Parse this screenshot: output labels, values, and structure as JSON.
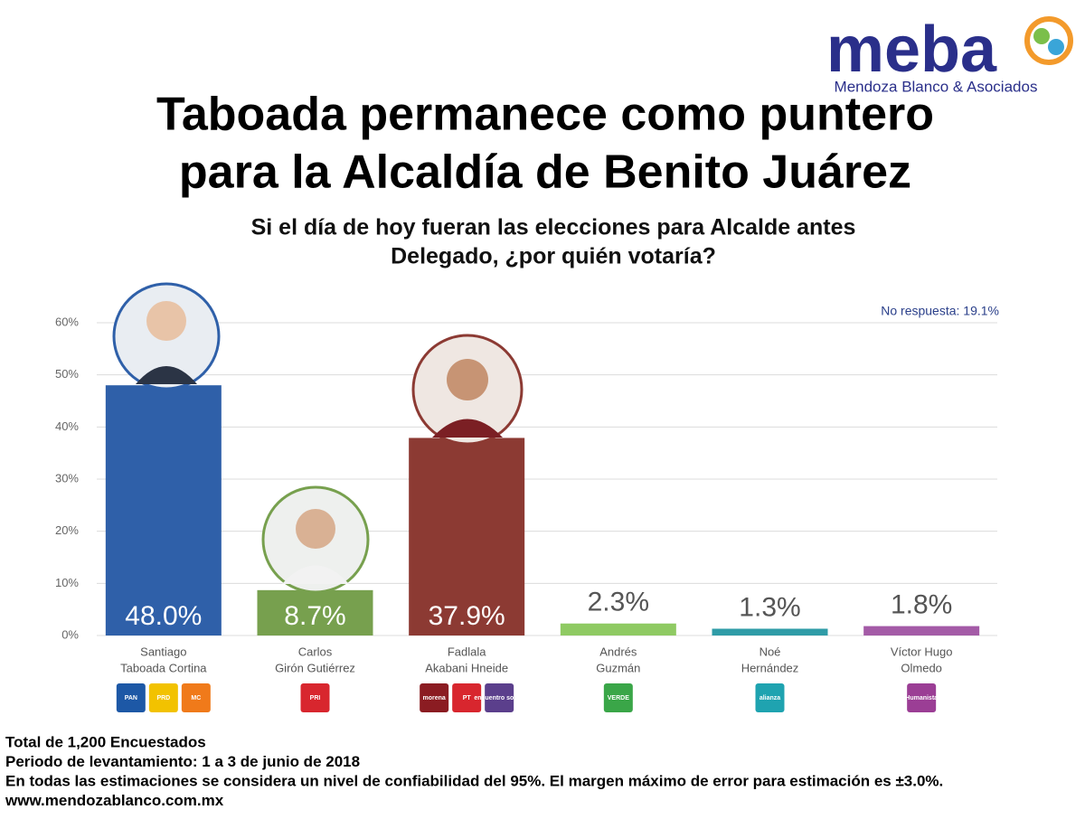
{
  "brand": {
    "name": "meba",
    "tagline": "Mendoza Blanco & Asociados"
  },
  "chart_data": {
    "type": "bar",
    "title": [
      "Taboada permanece como puntero",
      "para la Alcaldía de Benito Juárez"
    ],
    "subtitle": [
      "Si el día de hoy fueran las elecciones para Alcalde antes",
      "Delegado, ¿por quién votaría?"
    ],
    "annotation": "No respuesta: 19.1%",
    "categories": [
      [
        "Santiago",
        "Taboada Cortina"
      ],
      [
        "Carlos",
        "Girón Gutiérrez"
      ],
      [
        "Fadlala",
        "Akabani Hneide"
      ],
      [
        "Andrés",
        "Guzmán"
      ],
      [
        "Noé",
        "Hernández"
      ],
      [
        "Víctor Hugo",
        "Olmedo"
      ]
    ],
    "values": [
      48.0,
      8.7,
      37.9,
      2.3,
      1.3,
      1.8
    ],
    "value_labels": [
      "48.0%",
      "8.7%",
      "37.9%",
      "2.3%",
      "1.3%",
      "1.8%"
    ],
    "colors": [
      "#2f60a9",
      "#77a04e",
      "#8c3a33",
      "#8fca63",
      "#2f9ca7",
      "#a45ba7"
    ],
    "ylim": [
      0,
      60
    ],
    "yticks": [
      {
        "value": 0,
        "label": "0%"
      },
      {
        "value": 10,
        "label": "10%"
      },
      {
        "value": 20,
        "label": "20%"
      },
      {
        "value": 30,
        "label": "30%"
      },
      {
        "value": 40,
        "label": "40%"
      },
      {
        "value": 50,
        "label": "50%"
      },
      {
        "value": 60,
        "label": "60%"
      }
    ],
    "grid": true,
    "logos": [
      [
        {
          "text": "PAN",
          "color": "#1d58a6"
        },
        {
          "text": "PRD",
          "color": "#f2c200"
        },
        {
          "text": "MC",
          "color": "#f07a1a"
        }
      ],
      [
        {
          "text": "PRI",
          "color": "#d8262e"
        }
      ],
      [
        {
          "text": "morena",
          "color": "#8b1c22"
        },
        {
          "text": "PT",
          "color": "#d8262e"
        },
        {
          "text": "encuentro social",
          "color": "#5b3f8c"
        }
      ],
      [
        {
          "text": "VERDE",
          "color": "#3aa648"
        }
      ],
      [
        {
          "text": "alianza",
          "color": "#1fa3b0"
        }
      ],
      [
        {
          "text": "Humanista",
          "color": "#9b3e95"
        }
      ]
    ]
  },
  "footer": [
    "Total de 1,200 Encuestados",
    "Periodo de levantamiento: 1 a 3 de junio de 2018",
    "En todas las estimaciones se considera un nivel de confiabilidad del 95%. El margen máximo de error para estimación es ±3.0%.",
    "www.mendozablanco.com.mx"
  ]
}
